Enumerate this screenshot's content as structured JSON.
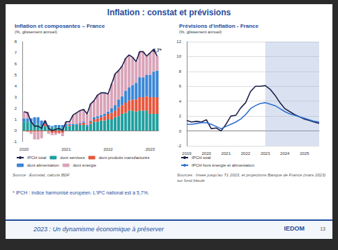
{
  "title": "Inflation : constat et prévisions",
  "footnote": "* IPCH : indice harmonisé européen. L'IPC national est à 5,7%.",
  "footer": "2023 : Un dynamisme économique à préserver",
  "logo": "IEDOM",
  "page_number": "13",
  "chart_data": [
    {
      "type": "bar",
      "title": "Inflation et composantes – France",
      "subtitle": "(%, glissement annuel)",
      "source": "Source : Eurostat, calculs BDF.",
      "stacked": true,
      "legend": "bottom",
      "grid": false,
      "categories": [
        "2020",
        null,
        null,
        null,
        null,
        null,
        null,
        null,
        null,
        null,
        null,
        null,
        "2021",
        null,
        null,
        null,
        null,
        null,
        null,
        null,
        null,
        null,
        null,
        null,
        "2022",
        null,
        null,
        null,
        null,
        null,
        null,
        null,
        null,
        null,
        null,
        null,
        "2023",
        null,
        null
      ],
      "ylim": [
        -1,
        8
      ],
      "yticks": [
        -1,
        0,
        1,
        2,
        3,
        4,
        5,
        6,
        7,
        8
      ],
      "series": [
        {
          "name": "IPCH total",
          "type": "line",
          "color": "#1b1f4a",
          "values": [
            1.7,
            1.6,
            0.8,
            0.4,
            0.4,
            0.2,
            0.9,
            0.2,
            0.0,
            0.1,
            0.2,
            0.0,
            0.8,
            0.8,
            1.4,
            1.6,
            1.8,
            1.9,
            1.5,
            2.4,
            2.7,
            3.2,
            3.4,
            3.4,
            3.3,
            4.2,
            5.1,
            5.4,
            5.8,
            6.5,
            6.8,
            6.6,
            6.2,
            7.1,
            7.1,
            6.7,
            7.0,
            7.3,
            6.7
          ],
          "value_labels": [
            null,
            null,
            null,
            null,
            null,
            null,
            null,
            null,
            null,
            null,
            null,
            null,
            null,
            null,
            null,
            null,
            null,
            null,
            null,
            null,
            null,
            null,
            null,
            null,
            null,
            null,
            null,
            null,
            null,
            null,
            null,
            null,
            null,
            null,
            null,
            null,
            null,
            null,
            "6,7*"
          ]
        },
        {
          "name": "dont services",
          "type": "bar",
          "color": "#1f9e9e",
          "values": [
            0.8,
            0.8,
            0.7,
            0.6,
            0.6,
            0.5,
            0.4,
            0.3,
            0.3,
            0.3,
            0.3,
            0.3,
            0.4,
            0.4,
            0.5,
            0.5,
            0.5,
            0.5,
            0.4,
            0.6,
            0.8,
            0.8,
            0.9,
            0.9,
            1.0,
            1.0,
            1.2,
            1.3,
            1.5,
            1.6,
            1.8,
            1.8,
            1.7,
            1.8,
            1.8,
            1.8,
            1.5,
            1.5,
            1.5
          ]
        },
        {
          "name": "dont produits manufacturés",
          "type": "bar",
          "color": "#e8553b",
          "values": [
            0.0,
            -0.1,
            -0.1,
            -0.1,
            -0.1,
            -0.1,
            0.2,
            -0.1,
            -0.2,
            -0.2,
            -0.2,
            -0.2,
            0.0,
            0.1,
            0.0,
            0.0,
            0.1,
            0.2,
            0.0,
            0.2,
            0.2,
            0.3,
            0.3,
            0.4,
            0.5,
            0.6,
            0.6,
            0.8,
            0.8,
            0.9,
            0.9,
            1.0,
            1.1,
            1.2,
            1.2,
            1.3,
            1.5,
            1.5,
            1.5
          ]
        },
        {
          "name": "dont alimentation",
          "type": "bar",
          "color": "#3a86d6",
          "values": [
            0.3,
            0.3,
            0.4,
            0.6,
            0.6,
            0.4,
            0.2,
            0.2,
            0.1,
            0.2,
            0.2,
            0.2,
            0.2,
            0.1,
            0.1,
            0.1,
            0.1,
            0.1,
            0.1,
            0.1,
            0.2,
            0.2,
            0.2,
            0.2,
            0.2,
            0.4,
            0.5,
            0.7,
            0.8,
            1.1,
            1.2,
            1.3,
            1.5,
            1.8,
            1.8,
            1.9,
            2.0,
            2.3,
            2.4
          ]
        },
        {
          "name": "dont énergie",
          "type": "bar",
          "color": "#d9a3b8",
          "values": [
            0.6,
            0.6,
            -0.2,
            -0.7,
            -0.7,
            -0.6,
            0.1,
            -0.2,
            -0.2,
            -0.2,
            -0.1,
            -0.3,
            0.2,
            0.2,
            0.8,
            1.0,
            1.1,
            1.1,
            1.0,
            1.5,
            1.5,
            1.9,
            2.0,
            1.9,
            1.6,
            2.2,
            2.8,
            2.6,
            2.7,
            2.9,
            2.9,
            2.5,
            1.9,
            2.3,
            2.3,
            1.7,
            2.0,
            2.0,
            1.3
          ]
        }
      ]
    },
    {
      "type": "line",
      "title": "Prévisions d'inflation - France",
      "subtitle": "(%, glissement annuel)",
      "source": "Sources : Insee jusqu'au T1 2023, et projections Banque de France (mars 2023) sur fond bleuté",
      "legend": "bottom",
      "grid": true,
      "shaded_from": 16,
      "categories": [
        "2019",
        null,
        null,
        null,
        "2020",
        null,
        null,
        null,
        "2021",
        null,
        null,
        null,
        "2022",
        null,
        null,
        null,
        "2023",
        null,
        null,
        null,
        "2024",
        null,
        null,
        null,
        "2025",
        null,
        null,
        null
      ],
      "ylim": [
        -2,
        12
      ],
      "yticks": [
        -2,
        0,
        2,
        4,
        6,
        8,
        10,
        12
      ],
      "series": [
        {
          "name": "IPCH total",
          "color": "#1b1f4a",
          "values": [
            1.4,
            1.2,
            1.3,
            1.2,
            1.5,
            0.3,
            0.4,
            0.0,
            0.9,
            2.0,
            2.1,
            3.1,
            3.8,
            5.3,
            6.0,
            6.0,
            6.1,
            5.6,
            4.8,
            3.8,
            3.0,
            2.6,
            2.2,
            1.9,
            1.6,
            1.4,
            1.2,
            1.0
          ]
        },
        {
          "name": "IPCH hors énergie et alimentation",
          "color": "#2e6fd0",
          "values": [
            0.9,
            0.9,
            1.0,
            1.1,
            1.1,
            0.9,
            0.6,
            0.3,
            0.6,
            0.9,
            1.2,
            1.6,
            2.2,
            3.0,
            3.4,
            3.7,
            3.8,
            3.6,
            3.4,
            3.0,
            2.6,
            2.3,
            2.1,
            1.9,
            1.7,
            1.5,
            1.3,
            1.2
          ]
        }
      ]
    }
  ]
}
